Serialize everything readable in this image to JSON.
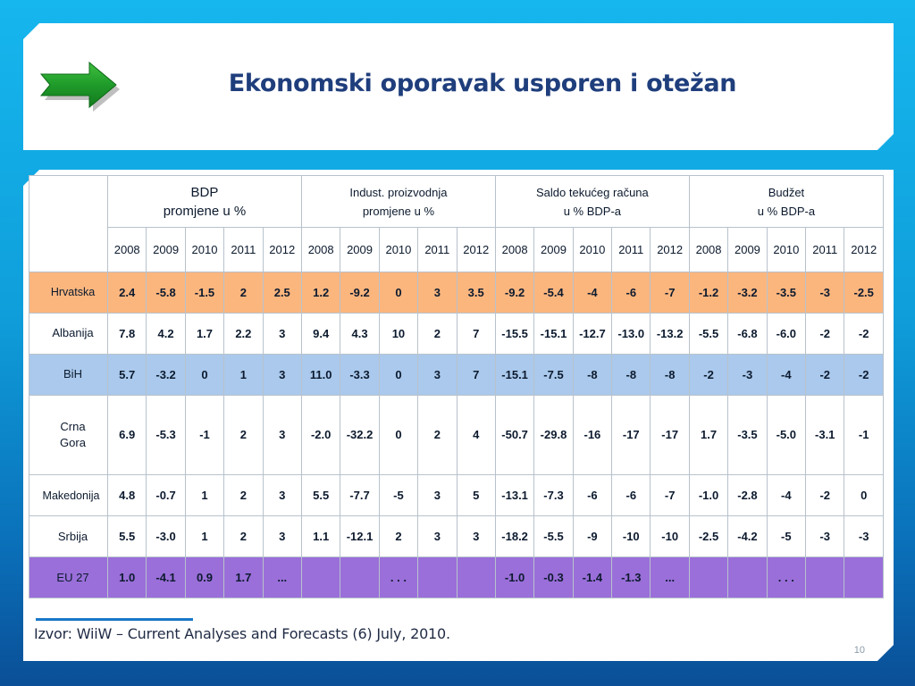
{
  "title": "Ekonomski oporavak usporen i otežan",
  "chart_data": {
    "type": "table",
    "groups": [
      {
        "label": "BDP\npromjene u %"
      },
      {
        "label": "Indust. proizvodnja\npromjene u %"
      },
      {
        "label": "Saldo tekućeg računa\nu % BDP-a"
      },
      {
        "label": "Budžet\nu % BDP-a"
      }
    ],
    "years": [
      "2008",
      "2009",
      "2010",
      "2011",
      "2012"
    ],
    "rows": [
      {
        "country": "Hrvatska",
        "values": [
          "2.4",
          "-5.8",
          "-1.5",
          "2",
          "2.5",
          "1.2",
          "-9.2",
          "0",
          "3",
          "3.5",
          "-9.2",
          "-5.4",
          "-4",
          "-6",
          "-7",
          "-1.2",
          "-3.2",
          "-3.5",
          "-3",
          "-2.5"
        ]
      },
      {
        "country": "Albanija",
        "values": [
          "7.8",
          "4.2",
          "1.7",
          "2.2",
          "3",
          "9.4",
          "4.3",
          "10",
          "2",
          "7",
          "-15.5",
          "-15.1",
          "-12.7",
          "-13.0",
          "-13.2",
          "-5.5",
          "-6.8",
          "-6.0",
          "-2",
          "-2"
        ]
      },
      {
        "country": "BiH",
        "values": [
          "5.7",
          "-3.2",
          "0",
          "1",
          "3",
          "11.0",
          "-3.3",
          "0",
          "3",
          "7",
          "-15.1",
          "-7.5",
          "-8",
          "-8",
          "-8",
          "-2",
          "-3",
          "-4",
          "-2",
          "-2"
        ]
      },
      {
        "country": "Crna Gora",
        "values": [
          "6.9",
          "-5.3",
          "-1",
          "2",
          "3",
          "-2.0",
          "-32.2",
          "0",
          "2",
          "4",
          "-50.7",
          "-29.8",
          "-16",
          "-17",
          "-17",
          "1.7",
          "-3.5",
          "-5.0",
          "-3.1",
          "-1"
        ]
      },
      {
        "country": "Makedonija",
        "values": [
          "4.8",
          "-0.7",
          "1",
          "2",
          "3",
          "5.5",
          "-7.7",
          "-5",
          "3",
          "5",
          "-13.1",
          "-7.3",
          "-6",
          "-6",
          "-7",
          "-1.0",
          "-2.8",
          "-4",
          "-2",
          "0"
        ]
      },
      {
        "country": "Srbija",
        "values": [
          "5.5",
          "-3.0",
          "1",
          "2",
          "3",
          "1.1",
          "-12.1",
          "2",
          "3",
          "3",
          "-18.2",
          "-5.5",
          "-9",
          "-10",
          "-10",
          "-2.5",
          "-4.2",
          "-5",
          "-3",
          "-3"
        ]
      },
      {
        "country": "EU 27",
        "values": [
          "1.0",
          "-4.1",
          "0.9",
          "1.7",
          "...",
          "",
          "",
          ". . .",
          "",
          "",
          "-1.0",
          "-0.3",
          "-1.4",
          "-1.3",
          "...",
          "",
          "",
          ". . .",
          "",
          ""
        ]
      }
    ],
    "row_colors": {
      "Hrvatska": "#fbb67e",
      "BiH": "#aac9ec",
      "EU 27": "#9a6fd9",
      "default": "#ffffff"
    }
  },
  "source": "Izvor: WiiW – Current Analyses and Forecasts (6) July, 2010.",
  "page_number": "10",
  "icons": {
    "arrow": "green-right-arrow-icon"
  }
}
